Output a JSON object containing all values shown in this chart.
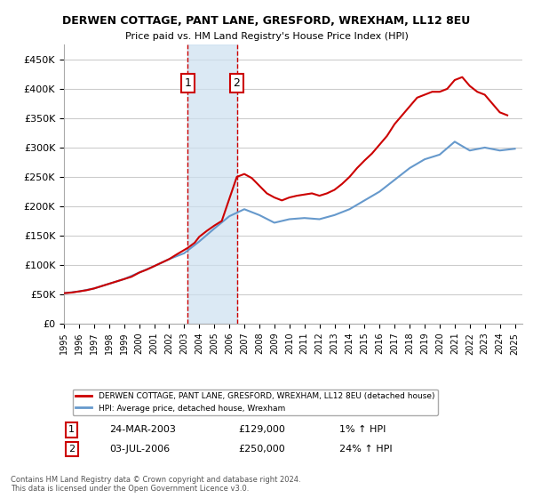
{
  "title": "DERWEN COTTAGE, PANT LANE, GRESFORD, WREXHAM, LL12 8EU",
  "subtitle": "Price paid vs. HM Land Registry's House Price Index (HPI)",
  "legend_line1": "DERWEN COTTAGE, PANT LANE, GRESFORD, WREXHAM, LL12 8EU (detached house)",
  "legend_line2": "HPI: Average price, detached house, Wrexham",
  "footer": "Contains HM Land Registry data © Crown copyright and database right 2024.\nThis data is licensed under the Open Government Licence v3.0.",
  "transaction1_label": "1",
  "transaction1_date": "24-MAR-2003",
  "transaction1_price": "£129,000",
  "transaction1_hpi": "1% ↑ HPI",
  "transaction2_label": "2",
  "transaction2_date": "03-JUL-2006",
  "transaction2_price": "£250,000",
  "transaction2_hpi": "24% ↑ HPI",
  "red_line_color": "#cc0000",
  "blue_line_color": "#6699cc",
  "shade_color": "#cce0f0",
  "transaction1_x": 2003.23,
  "transaction2_x": 2006.5,
  "ylim": [
    0,
    475000
  ],
  "yticks": [
    0,
    50000,
    100000,
    150000,
    200000,
    250000,
    300000,
    350000,
    400000,
    450000
  ],
  "years": [
    1995,
    1996,
    1997,
    1998,
    1999,
    2000,
    2001,
    2002,
    2003,
    2004,
    2005,
    2006,
    2007,
    2008,
    2009,
    2010,
    2011,
    2012,
    2013,
    2014,
    2015,
    2016,
    2017,
    2018,
    2019,
    2020,
    2021,
    2022,
    2023,
    2024,
    2025
  ],
  "hpi_values": [
    52000,
    55000,
    60000,
    68000,
    76000,
    87000,
    98000,
    110000,
    120000,
    140000,
    162000,
    183000,
    195000,
    185000,
    172000,
    178000,
    180000,
    178000,
    185000,
    195000,
    210000,
    225000,
    245000,
    265000,
    280000,
    288000,
    310000,
    295000,
    300000,
    295000,
    298000
  ],
  "price_paid_years": [
    1995.0,
    1995.5,
    1996.0,
    1996.5,
    1997.0,
    1997.5,
    1998.0,
    1998.5,
    1999.0,
    1999.5,
    2000.0,
    2000.5,
    2001.0,
    2001.5,
    2002.0,
    2002.5,
    2003.23,
    2003.7,
    2004.0,
    2004.5,
    2005.0,
    2005.5,
    2006.5,
    2007.0,
    2007.5,
    2008.0,
    2008.5,
    2009.0,
    2009.5,
    2010.0,
    2010.5,
    2011.0,
    2011.5,
    2012.0,
    2012.5,
    2013.0,
    2013.5,
    2014.0,
    2014.5,
    2015.0,
    2015.5,
    2016.0,
    2016.5,
    2017.0,
    2017.5,
    2018.0,
    2018.5,
    2019.0,
    2019.5,
    2020.0,
    2020.5,
    2021.0,
    2021.5,
    2022.0,
    2022.5,
    2023.0,
    2023.5,
    2024.0,
    2024.5
  ],
  "price_paid_values": [
    52000,
    53000,
    55000,
    57000,
    60000,
    64000,
    68000,
    72000,
    76000,
    80000,
    87000,
    92000,
    98000,
    104000,
    110000,
    118000,
    129000,
    138000,
    148000,
    158000,
    167000,
    175000,
    250000,
    255000,
    248000,
    235000,
    222000,
    215000,
    210000,
    215000,
    218000,
    220000,
    222000,
    218000,
    222000,
    228000,
    238000,
    250000,
    265000,
    278000,
    290000,
    305000,
    320000,
    340000,
    355000,
    370000,
    385000,
    390000,
    395000,
    395000,
    400000,
    415000,
    420000,
    405000,
    395000,
    390000,
    375000,
    360000,
    355000
  ]
}
